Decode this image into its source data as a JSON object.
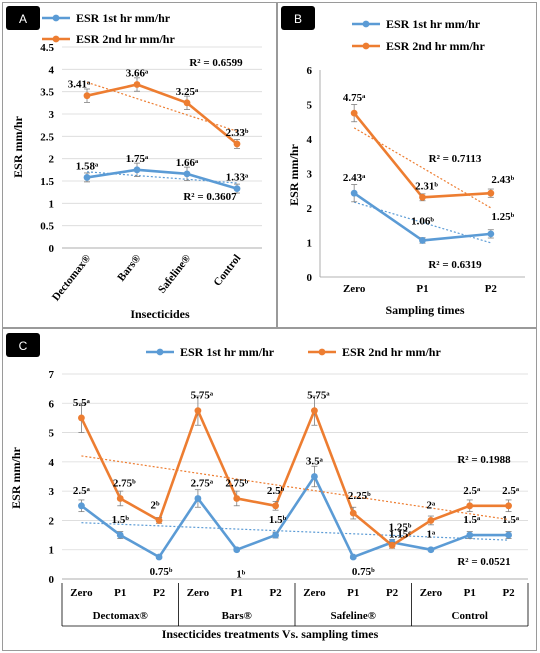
{
  "colors": {
    "series1": "#5b9bd5",
    "series2": "#ed7d31",
    "grid": "#d9d9d9",
    "badge": "#000000"
  },
  "chart_data": [
    {
      "panel": "A",
      "type": "line",
      "categories": [
        "Dectomax®",
        "Bars®",
        "Safeline®",
        "Control"
      ],
      "xlabel": "Insecticides",
      "ylabel": "ESR mm/hr",
      "ylim": [
        0,
        4.5
      ],
      "yticks": [
        "0",
        "0.5",
        "1",
        "1.5",
        "2",
        "2.5",
        "3",
        "3.5",
        "4",
        "4.5"
      ],
      "grid": true,
      "legend": "top-left",
      "series": [
        {
          "name": "ESR 1st hr mm/hr",
          "values": [
            1.58,
            1.75,
            1.66,
            1.33
          ],
          "errors": [
            0.1,
            0.15,
            0.15,
            0.1
          ],
          "labels": [
            "1.58ᵃ",
            "1.75ᵃ",
            "1.66ᵃ",
            "1.33ᵃ"
          ],
          "r2": "R² = 0.3607"
        },
        {
          "name": "ESR 2nd hr mm/hr",
          "values": [
            3.41,
            3.66,
            3.25,
            2.33
          ],
          "errors": [
            0.15,
            0.15,
            0.15,
            0.1
          ],
          "labels": [
            "3.41ᵃ",
            "3.66ᵃ",
            "3.25ᵃ",
            "2.33ᵇ"
          ],
          "r2": "R² = 0.6599"
        }
      ]
    },
    {
      "panel": "B",
      "type": "line",
      "categories": [
        "Zero",
        "P1",
        "P2"
      ],
      "xlabel": "Sampling times",
      "ylabel": "ESR mm/hr",
      "ylim": [
        0,
        6
      ],
      "yticks": [
        "0",
        "1",
        "2",
        "3",
        "4",
        "5",
        "6"
      ],
      "grid": false,
      "legend": "top",
      "series": [
        {
          "name": "ESR 1st hr mm/hr",
          "values": [
            2.43,
            1.06,
            1.25
          ],
          "errors": [
            0.25,
            0.08,
            0.12
          ],
          "labels": [
            "2.43ᵃ",
            "1.06ᵇ",
            "1.25ᵇ"
          ],
          "r2": "R² = 0.6319"
        },
        {
          "name": "ESR 2nd hr mm/hr",
          "values": [
            4.75,
            2.31,
            2.43
          ],
          "errors": [
            0.25,
            0.1,
            0.12
          ],
          "labels": [
            "4.75ᵃ",
            "2.31ᵇ",
            "2.43ᵇ"
          ],
          "r2": "R² = 0.7113"
        }
      ]
    },
    {
      "panel": "C",
      "type": "line",
      "categories": [
        "Zero",
        "P1",
        "P2",
        "Zero",
        "P1",
        "P2",
        "Zero",
        "P1",
        "P2",
        "Zero",
        "P1",
        "P2"
      ],
      "groups": [
        "Dectomax®",
        "Bars®",
        "Safeline®",
        "Control"
      ],
      "xlabel": "Insecticides treatments Vs. sampling times",
      "ylabel": "ESR mm/hr",
      "ylim": [
        0,
        7
      ],
      "yticks": [
        "0",
        "1",
        "2",
        "3",
        "4",
        "5",
        "6",
        "7"
      ],
      "grid": true,
      "legend": "top",
      "series": [
        {
          "name": "ESR 1st hr mm/hr",
          "values": [
            2.5,
            1.5,
            0.75,
            2.75,
            1.0,
            1.5,
            3.5,
            0.75,
            1.25,
            1.0,
            1.5,
            1.5
          ],
          "errors": [
            0.2,
            0.12,
            0.05,
            0.3,
            0.05,
            0.1,
            0.35,
            0.05,
            0.1,
            0.05,
            0.12,
            0.12
          ],
          "labels": [
            "2.5ᵃ",
            "1.5ᵇ",
            "0.75ᵇ",
            "2.75ᵃ",
            "1ᵇ",
            "1.5ᵇ",
            "3.5ᵃ",
            "0.75ᵇ",
            "1.25ᵇ",
            "1ᵃ",
            "1.5ᵃ",
            "1.5ᵃ"
          ],
          "r2": "R² = 0.0521"
        },
        {
          "name": "ESR 2nd hr mm/hr",
          "values": [
            5.5,
            2.75,
            2.0,
            5.75,
            2.75,
            2.5,
            5.75,
            2.25,
            1.15,
            2.0,
            2.5,
            2.5
          ],
          "errors": [
            0.5,
            0.25,
            0.1,
            0.5,
            0.25,
            0.15,
            0.5,
            0.2,
            0.1,
            0.15,
            0.2,
            0.2
          ],
          "labels": [
            "5.5ᵃ",
            "2.75ᵇ",
            "2ᵇ",
            "5.75ᵃ",
            "2.75ᵇ",
            "2.5ᵇ",
            "5.75ᵃ",
            "2.25ᵇ",
            "1.15ᶜ",
            "2ᵃ",
            "2.5ᵃ",
            "2.5ᵃ"
          ],
          "r2": "R² = 0.1988"
        }
      ]
    }
  ]
}
